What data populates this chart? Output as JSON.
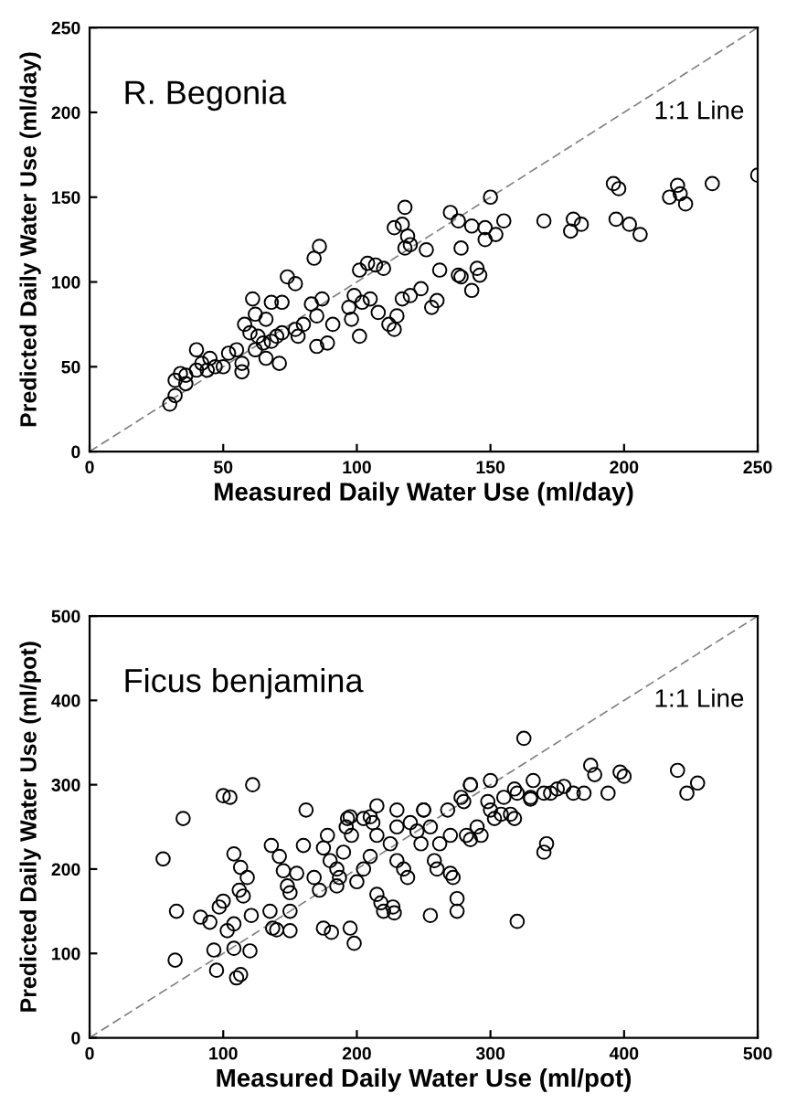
{
  "chart_data": [
    {
      "type": "scatter",
      "title": "R. Begonia",
      "xlabel": "Measured Daily Water Use (ml/day)",
      "ylabel": "Predicted Daily Water Use (ml/day)",
      "xlim": [
        0,
        250
      ],
      "ylim": [
        0,
        250
      ],
      "xticks": [
        0,
        50,
        100,
        150,
        200,
        250
      ],
      "yticks": [
        0,
        50,
        100,
        150,
        200,
        250
      ],
      "grid": false,
      "legend": false,
      "series": [
        {
          "type": "line",
          "name": "1:1 Line",
          "color": "#808080",
          "line_style": "dashed",
          "marker": "none",
          "x": [
            0,
            250
          ],
          "values": [
            0,
            250
          ]
        },
        {
          "marker": "circle",
          "color": "#000000",
          "x": [
            250,
            233,
            220,
            221,
            223,
            217,
            196,
            198,
            202,
            206,
            197,
            181,
            180,
            184,
            170,
            150,
            155,
            152,
            148,
            143,
            139,
            148,
            135,
            138,
            118,
            117,
            119,
            114,
            118,
            120,
            126,
            104,
            110,
            101,
            107,
            131,
            138,
            145,
            86,
            84,
            77,
            74,
            99,
            102,
            105,
            97,
            108,
            112,
            114,
            115,
            117,
            120,
            124,
            128,
            130,
            143,
            139,
            146,
            98,
            101,
            91,
            87,
            83,
            85,
            80,
            77,
            72,
            70,
            68,
            65,
            63,
            60,
            58,
            62,
            66,
            61,
            68,
            72,
            55,
            52,
            57,
            57,
            50,
            47,
            45,
            44,
            40,
            42,
            40,
            36,
            34,
            32,
            32,
            30,
            36,
            89,
            85,
            71,
            66,
            62,
            78
          ],
          "values": [
            163,
            158,
            157,
            152,
            146,
            150,
            158,
            155,
            134,
            128,
            137,
            137,
            130,
            134,
            136,
            150,
            136,
            128,
            125,
            133,
            120,
            132,
            141,
            136,
            144,
            134,
            127,
            132,
            120,
            122,
            119,
            111,
            108,
            107,
            110,
            107,
            104,
            108,
            121,
            114,
            99,
            103,
            92,
            88,
            90,
            85,
            82,
            75,
            72,
            80,
            90,
            92,
            96,
            85,
            89,
            95,
            103,
            104,
            78,
            68,
            75,
            90,
            87,
            80,
            75,
            72,
            70,
            68,
            65,
            64,
            68,
            70,
            75,
            81,
            78,
            90,
            88,
            88,
            60,
            58,
            52,
            47,
            50,
            50,
            55,
            48,
            48,
            52,
            60,
            45,
            46,
            42,
            33,
            28,
            40,
            64,
            62,
            52,
            55,
            60,
            68
          ]
        }
      ]
    },
    {
      "type": "scatter",
      "title": "Ficus benjamina",
      "xlabel": "Measured Daily Water Use (ml/pot)",
      "ylabel": "Predicted Daily Water Use (ml/pot)",
      "xlim": [
        0,
        500
      ],
      "ylim": [
        0,
        500
      ],
      "xticks": [
        0,
        100,
        200,
        300,
        400,
        500
      ],
      "yticks": [
        0,
        100,
        200,
        300,
        400,
        500
      ],
      "grid": false,
      "legend": false,
      "series": [
        {
          "type": "line",
          "name": "1:1 Line",
          "color": "#808080",
          "line_style": "dashed",
          "marker": "none",
          "x": [
            0,
            500
          ],
          "values": [
            0,
            500
          ]
        },
        {
          "marker": "circle",
          "color": "#000000",
          "x": [
            325,
            375,
            378,
            397,
            440,
            455,
            447,
            310,
            332,
            345,
            355,
            330,
            340,
            300,
            318,
            285,
            250,
            230,
            215,
            210,
            195,
            105,
            100,
            122,
            70,
            55,
            64,
            65,
            83,
            90,
            93,
            95,
            100,
            97,
            103,
            108,
            108,
            110,
            113,
            108,
            113,
            112,
            118,
            115,
            121,
            120,
            135,
            137,
            140,
            150,
            150,
            136,
            142,
            145,
            148,
            150,
            155,
            160,
            162,
            168,
            172,
            175,
            175,
            178,
            180,
            181,
            185,
            185,
            187,
            190,
            192,
            193,
            196,
            195,
            198,
            200,
            205,
            210,
            205,
            212,
            215,
            215,
            218,
            220,
            225,
            227,
            228,
            230,
            235,
            238,
            230,
            240,
            245,
            248,
            250,
            255,
            262,
            258,
            260,
            255,
            270,
            272,
            275,
            275,
            270,
            280,
            285,
            290,
            293,
            300,
            303,
            308,
            298,
            315,
            318,
            320,
            320,
            340,
            342,
            330,
            350,
            362,
            370,
            388,
            400,
            278,
            268,
            282,
            285
          ],
          "values": [
            355,
            323,
            312,
            315,
            317,
            302,
            290,
            285,
            305,
            290,
            298,
            283,
            290,
            305,
            295,
            300,
            270,
            270,
            275,
            262,
            262,
            285,
            287,
            300,
            260,
            212,
            92,
            150,
            143,
            137,
            104,
            80,
            162,
            155,
            127,
            135,
            106,
            71,
            75,
            218,
            202,
            175,
            190,
            168,
            145,
            103,
            150,
            130,
            128,
            127,
            150,
            228,
            215,
            198,
            180,
            172,
            195,
            228,
            270,
            190,
            175,
            225,
            130,
            240,
            210,
            125,
            200,
            180,
            190,
            220,
            250,
            260,
            240,
            130,
            112,
            185,
            200,
            215,
            260,
            255,
            240,
            170,
            160,
            150,
            230,
            155,
            148,
            210,
            200,
            190,
            250,
            255,
            245,
            230,
            270,
            250,
            230,
            210,
            200,
            145,
            195,
            190,
            150,
            165,
            240,
            280,
            300,
            250,
            240,
            270,
            260,
            265,
            280,
            265,
            260,
            138,
            290,
            220,
            230,
            285,
            295,
            290,
            290,
            290,
            310,
            285,
            270,
            240,
            235
          ]
        }
      ]
    }
  ]
}
